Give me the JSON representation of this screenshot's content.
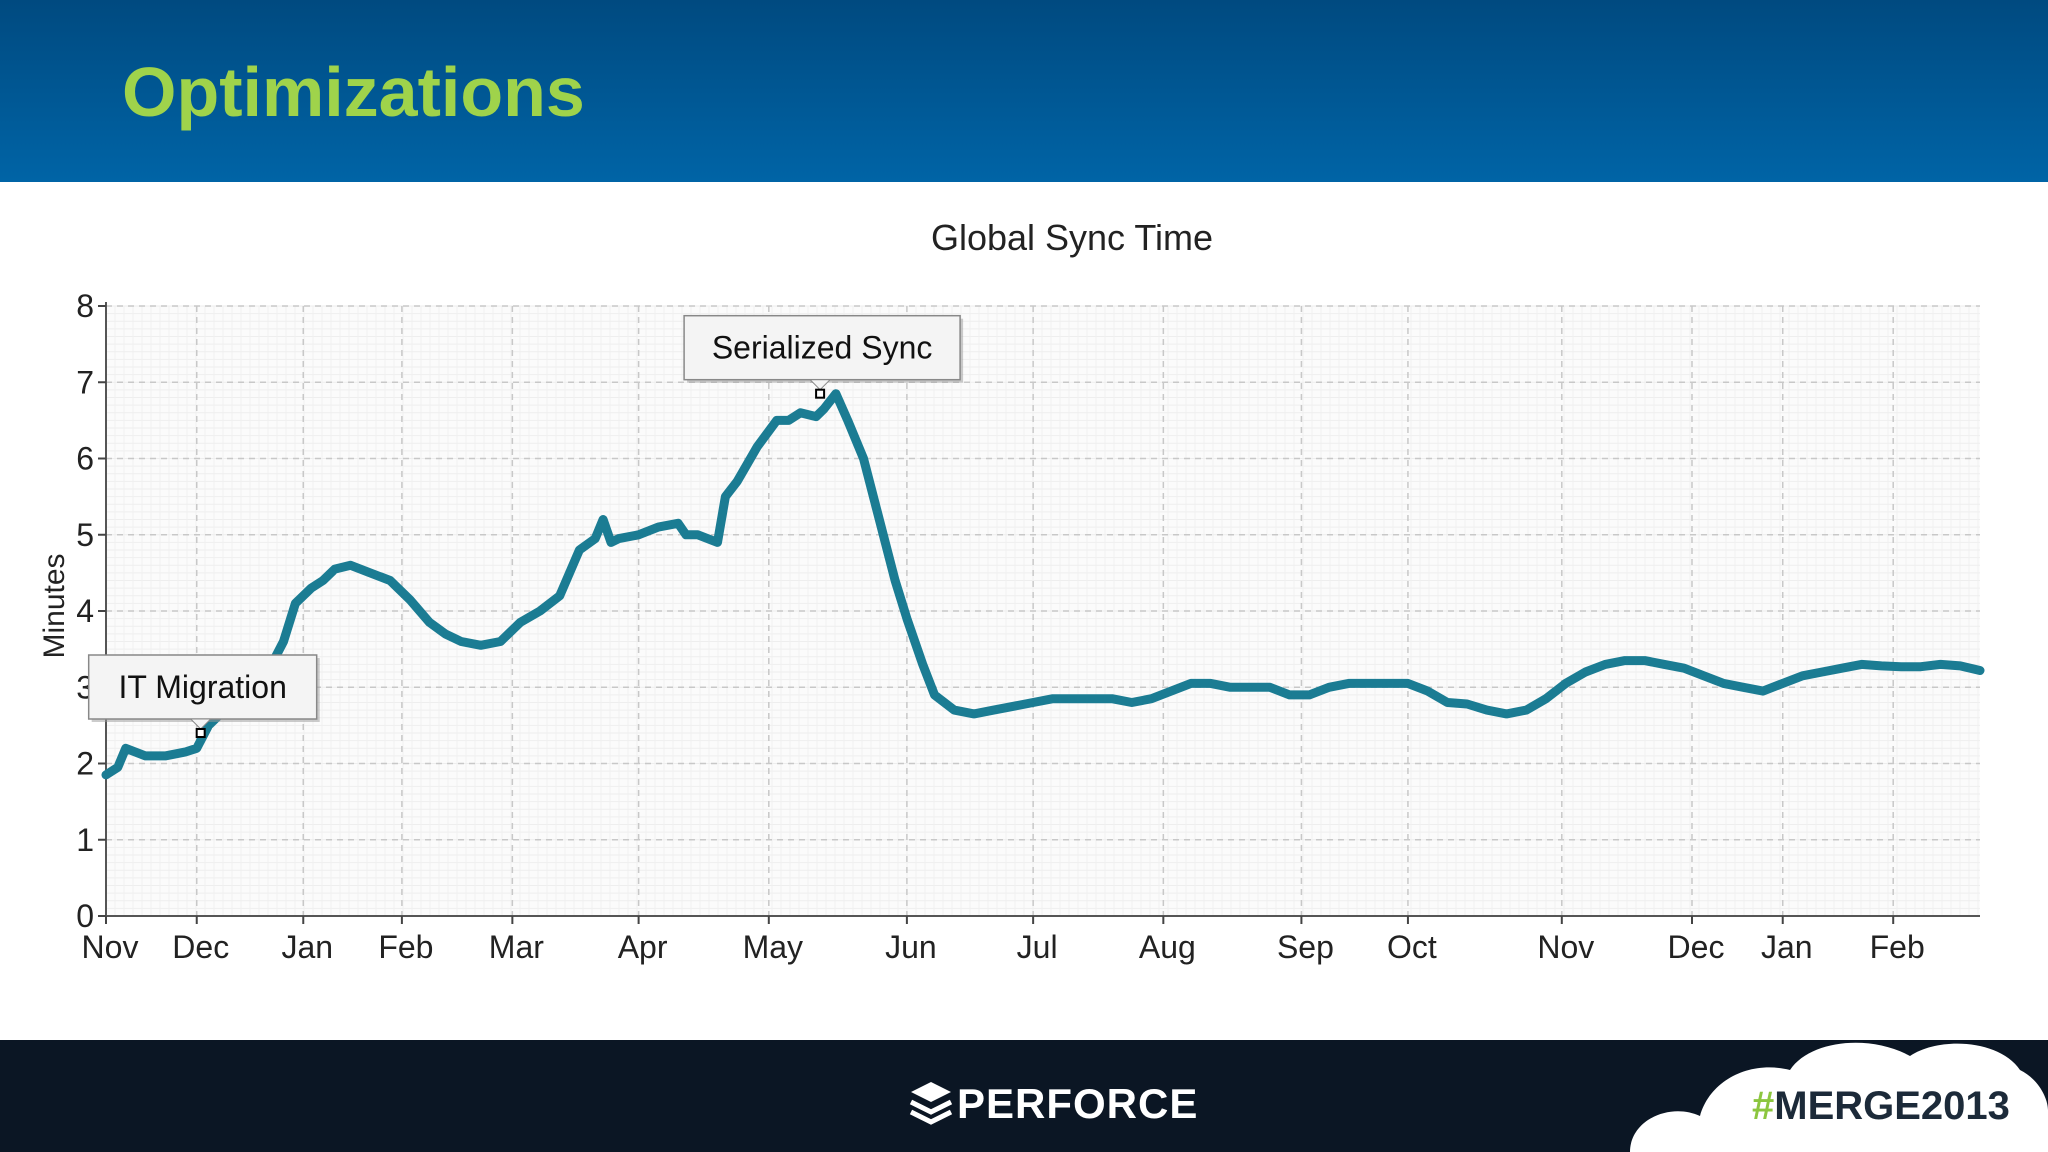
{
  "slide": {
    "title": "Optimizations"
  },
  "footer": {
    "logo_text": "PERFORCE",
    "hashtag_symbol": "#",
    "hashtag_text": "MERGE2013"
  },
  "colors": {
    "header_top": "#004a80",
    "header_bottom": "#0064a6",
    "title_green": "#9fd34b",
    "line": "#1b7c93",
    "footer": "#0b1624"
  },
  "chart_data": {
    "type": "line",
    "title": "Global Sync Time",
    "ylabel": "Minutes",
    "xlabel": "",
    "ylim": [
      0,
      8
    ],
    "yticks": [
      0,
      1,
      2,
      3,
      4,
      5,
      6,
      7,
      8
    ],
    "xlim": [
      0,
      475
    ],
    "grid": true,
    "month_ticks": [
      {
        "label": "Nov",
        "x": 0
      },
      {
        "label": "Dec",
        "x": 23
      },
      {
        "label": "Jan",
        "x": 50
      },
      {
        "label": "Feb",
        "x": 75
      },
      {
        "label": "Mar",
        "x": 103
      },
      {
        "label": "Apr",
        "x": 135
      },
      {
        "label": "May",
        "x": 168
      },
      {
        "label": "Jun",
        "x": 203
      },
      {
        "label": "Jul",
        "x": 235
      },
      {
        "label": "Aug",
        "x": 268
      },
      {
        "label": "Sep",
        "x": 303
      },
      {
        "label": "Oct",
        "x": 330
      },
      {
        "label": "Nov",
        "x": 369
      },
      {
        "label": "Dec",
        "x": 402
      },
      {
        "label": "Jan",
        "x": 425
      },
      {
        "label": "Feb",
        "x": 453
      }
    ],
    "series": [
      {
        "x": [
          0,
          3,
          5,
          10,
          15,
          20,
          23,
          26,
          30,
          35,
          40,
          45,
          48,
          52,
          55,
          58,
          62,
          67,
          72,
          77,
          82,
          86,
          90,
          95,
          100,
          105,
          110,
          115,
          120,
          124,
          126,
          128,
          130,
          135,
          140,
          145,
          147,
          150,
          155,
          157,
          160,
          165,
          170,
          173,
          176,
          180,
          182,
          185,
          188,
          192,
          196,
          200,
          203,
          207,
          210,
          215,
          220,
          225,
          230,
          235,
          240,
          245,
          250,
          255,
          260,
          265,
          270,
          275,
          280,
          285,
          290,
          295,
          300,
          305,
          310,
          315,
          320,
          325,
          330,
          335,
          340,
          345,
          350,
          355,
          360,
          365,
          370,
          375,
          380,
          385,
          390,
          395,
          400,
          405,
          410,
          415,
          420,
          425,
          430,
          435,
          440,
          445,
          450,
          455,
          460,
          465,
          470,
          475
        ],
        "y": [
          1.85,
          1.95,
          2.2,
          2.1,
          2.1,
          2.15,
          2.2,
          2.5,
          2.7,
          2.9,
          3.1,
          3.6,
          4.1,
          4.3,
          4.4,
          4.55,
          4.6,
          4.5,
          4.4,
          4.15,
          3.85,
          3.7,
          3.6,
          3.55,
          3.6,
          3.85,
          4.0,
          4.2,
          4.8,
          4.95,
          5.2,
          4.9,
          4.95,
          5.0,
          5.1,
          5.15,
          5.0,
          5.0,
          4.9,
          5.5,
          5.7,
          6.15,
          6.5,
          6.5,
          6.6,
          6.55,
          6.65,
          6.85,
          6.5,
          6.0,
          5.2,
          4.4,
          3.9,
          3.3,
          2.9,
          2.7,
          2.65,
          2.7,
          2.75,
          2.8,
          2.85,
          2.85,
          2.85,
          2.85,
          2.8,
          2.85,
          2.95,
          3.05,
          3.05,
          3.0,
          3.0,
          3.0,
          2.9,
          2.9,
          3.0,
          3.05,
          3.05,
          3.05,
          3.05,
          2.95,
          2.8,
          2.78,
          2.7,
          2.65,
          2.7,
          2.85,
          3.05,
          3.2,
          3.3,
          3.35,
          3.35,
          3.3,
          3.25,
          3.15,
          3.05,
          3.0,
          2.95,
          3.05,
          3.15,
          3.2,
          3.25,
          3.3,
          3.28,
          3.27,
          3.27,
          3.3,
          3.28,
          3.22
        ]
      }
    ],
    "annotations": [
      {
        "text": "IT Migration",
        "x": 24,
        "y": 2.4
      },
      {
        "text": "Serialized Sync",
        "x": 181,
        "y": 6.85
      }
    ]
  }
}
